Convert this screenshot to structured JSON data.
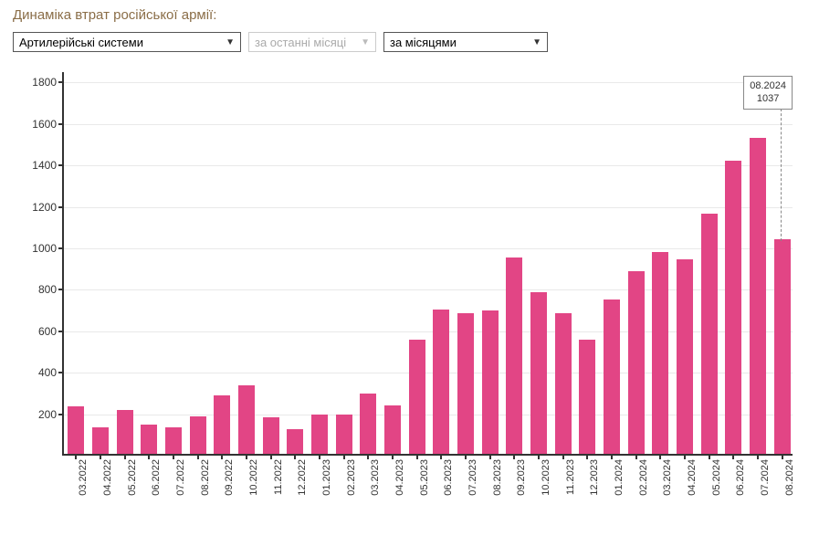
{
  "title": "Динаміка втрат російської армії:",
  "controls": {
    "category": "Артилерійські системи",
    "period_inactive": "за останні місяці",
    "grouping": "за місяцями"
  },
  "chart": {
    "type": "bar",
    "bar_color": "#e24585",
    "axis_color": "#323232",
    "grid_color": "#e9e9e9",
    "background_color": "#ffffff",
    "label_fontsize": 12,
    "y": {
      "min": 0,
      "max": 1850,
      "ticks": [
        200,
        400,
        600,
        800,
        1000,
        1200,
        1400,
        1600,
        1800
      ]
    },
    "bar_width_ratio": 0.68,
    "categories": [
      "03.2022",
      "04.2022",
      "05.2022",
      "06.2022",
      "07.2022",
      "08.2022",
      "09.2022",
      "10.2022",
      "11.2022",
      "12.2022",
      "01.2023",
      "02.2023",
      "03.2023",
      "04.2023",
      "05.2023",
      "06.2023",
      "07.2023",
      "08.2023",
      "09.2023",
      "10.2023",
      "11.2023",
      "12.2023",
      "01.2024",
      "02.2024",
      "03.2024",
      "04.2024",
      "05.2024",
      "06.2024",
      "07.2024",
      "08.2024"
    ],
    "values": [
      230,
      130,
      210,
      140,
      130,
      180,
      280,
      330,
      175,
      120,
      190,
      190,
      290,
      235,
      550,
      695,
      680,
      690,
      945,
      780,
      680,
      550,
      745,
      880,
      975,
      940,
      1160,
      1415,
      1525,
      1037
    ],
    "tooltip": {
      "index": 29,
      "label": "08.2024",
      "value": "1037"
    }
  }
}
